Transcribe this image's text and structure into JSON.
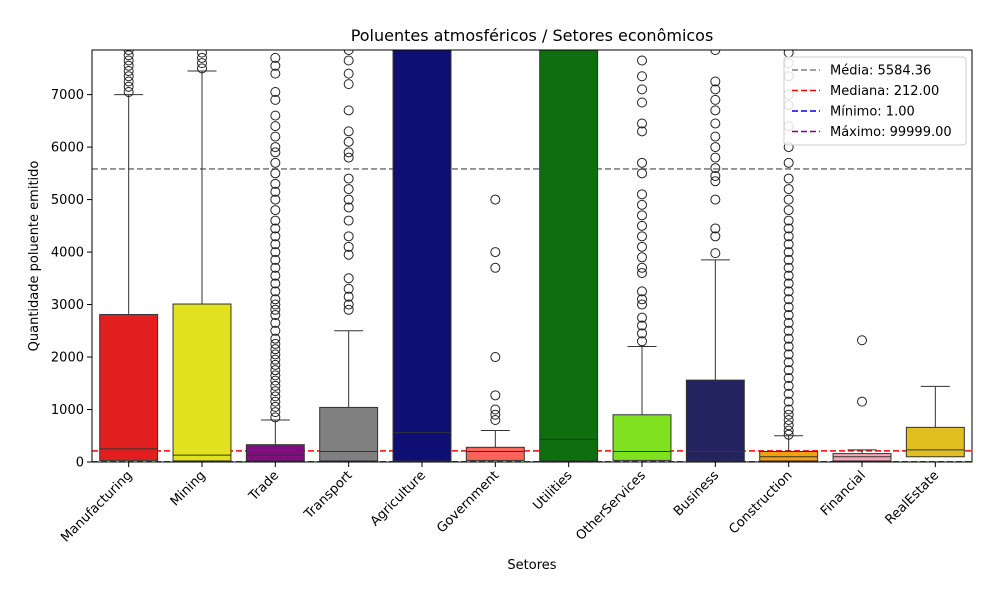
{
  "chart_data": {
    "type": "box",
    "title": "Poluentes atmosféricos / Setores econômicos",
    "xlabel": "Setores",
    "ylabel": "Quantidade poluente emitido",
    "ylim": [
      0,
      7850
    ],
    "yticks": [
      0,
      1000,
      2000,
      3000,
      4000,
      5000,
      6000,
      7000
    ],
    "grid": false,
    "legend_position": "top-right",
    "categories": [
      "Manufacturing",
      "Mining",
      "Trade",
      "Transport",
      "Agriculture",
      "Government",
      "Utilities",
      "OtherServices",
      "Business",
      "Construction",
      "Financial",
      "RealEstate"
    ],
    "boxes": [
      {
        "name": "Manufacturing",
        "color": "#e21f1f",
        "q1": 30,
        "median": 250,
        "q3": 2810,
        "whisker_low": 1,
        "whisker_high": 7000,
        "outliers": [
          7050,
          7150,
          7250,
          7350,
          7450,
          7550,
          7650,
          7750,
          7850
        ]
      },
      {
        "name": "Mining",
        "color": "#e1e11f",
        "q1": 20,
        "median": 130,
        "q3": 3010,
        "whisker_low": 1,
        "whisker_high": 7450,
        "outliers": [
          7500,
          7600,
          7700,
          7800
        ]
      },
      {
        "name": "Trade",
        "color": "#7f0f7f",
        "q1": 20,
        "median": 130,
        "q3": 330,
        "whisker_low": 1,
        "whisker_high": 800,
        "outliers": [
          850,
          950,
          1050,
          1150,
          1250,
          1350,
          1450,
          1550,
          1650,
          1750,
          1850,
          1950,
          2050,
          2150,
          2250,
          2350,
          2500,
          2650,
          2800,
          2900,
          3000,
          3100,
          3250,
          3400,
          3550,
          3700,
          3850,
          4000,
          4150,
          4300,
          4450,
          4600,
          4800,
          5000,
          5150,
          5300,
          5500,
          5700,
          5900,
          6000,
          6200,
          6400,
          6600,
          6900,
          7050,
          7400,
          7550,
          7700
        ]
      },
      {
        "name": "Transport",
        "color": "#808080",
        "q1": 20,
        "median": 200,
        "q3": 1040,
        "whisker_low": 1,
        "whisker_high": 2500,
        "outliers": [
          2900,
          3000,
          3150,
          3300,
          3500,
          3950,
          4100,
          4300,
          4600,
          4850,
          5000,
          5200,
          5400,
          5800,
          5900,
          6100,
          6300,
          6700,
          7200,
          7400,
          7650,
          7850
        ]
      },
      {
        "name": "Agriculture",
        "color": "#0f0f73",
        "q1": 20,
        "median": 560,
        "q3": 7850,
        "whisker_low": 1,
        "whisker_high": 7850,
        "outliers": []
      },
      {
        "name": "Government",
        "color": "#fa6459",
        "q1": 30,
        "median": 200,
        "q3": 280,
        "whisker_low": 1,
        "whisker_high": 600,
        "outliers": [
          800,
          900,
          1000,
          1270,
          2000,
          3700,
          4000,
          5000
        ]
      },
      {
        "name": "Utilities",
        "color": "#0f6f0f",
        "q1": 20,
        "median": 430,
        "q3": 7850,
        "whisker_low": 1,
        "whisker_high": 7850,
        "outliers": []
      },
      {
        "name": "OtherServices",
        "color": "#7fe11f",
        "q1": 30,
        "median": 200,
        "q3": 900,
        "whisker_low": 1,
        "whisker_high": 2200,
        "outliers": [
          2300,
          2450,
          2600,
          2750,
          3000,
          3100,
          3250,
          3600,
          3700,
          3900,
          4100,
          4300,
          4500,
          4700,
          4900,
          5100,
          5500,
          5700,
          6300,
          6450,
          6850,
          7100,
          7350,
          7650
        ]
      },
      {
        "name": "Business",
        "color": "#23235f",
        "q1": 20,
        "median": 200,
        "q3": 1560,
        "whisker_low": 1,
        "whisker_high": 3850,
        "outliers": [
          3980,
          4300,
          4450,
          5000,
          5350,
          5450,
          5600,
          5800,
          6000,
          6200,
          6450,
          6700,
          6900,
          7100,
          7250,
          7850
        ]
      },
      {
        "name": "Construction",
        "color": "#f5a011",
        "q1": 20,
        "median": 100,
        "q3": 200,
        "whisker_low": 1,
        "whisker_high": 500,
        "outliers": [
          520,
          600,
          700,
          800,
          900,
          1000,
          1150,
          1300,
          1450,
          1600,
          1750,
          1900,
          2050,
          2200,
          2350,
          2500,
          2650,
          2800,
          2950,
          3100,
          3250,
          3400,
          3550,
          3700,
          3850,
          4000,
          4150,
          4300,
          4450,
          4600,
          4800,
          5000,
          5200,
          5400,
          5700,
          6000,
          6400,
          6800,
          7000,
          7350,
          7600,
          7800
        ]
      },
      {
        "name": "Financial",
        "color": "#f4a9b8",
        "q1": 20,
        "median": 100,
        "q3": 160,
        "whisker_low": 1,
        "whisker_high": 230,
        "outliers": [
          1150,
          2320
        ]
      },
      {
        "name": "RealEstate",
        "color": "#e0c020",
        "q1": 100,
        "median": 230,
        "q3": 660,
        "whisker_low": 1,
        "whisker_high": 1440,
        "outliers": []
      }
    ],
    "reference_lines": [
      {
        "label": "Média: 5584.36",
        "value": 5584.36,
        "color": "#808080"
      },
      {
        "label": "Mediana: 212.00",
        "value": 212.0,
        "color": "#ff0000"
      },
      {
        "label": "Mínimo: 1.00",
        "value": 1.0,
        "color": "#0000ff"
      },
      {
        "label": "Máximo: 99999.00",
        "value": 99999.0,
        "color": "#800080"
      }
    ]
  }
}
